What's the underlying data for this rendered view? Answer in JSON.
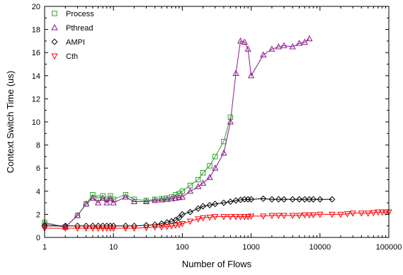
{
  "chart_data": {
    "type": "line",
    "title": "",
    "xlabel": "Number of Flows",
    "ylabel": "Context Switch Time (us)",
    "xscale": "log",
    "xlim": [
      1,
      100000
    ],
    "ylim": [
      0,
      20
    ],
    "x_ticks": [
      1,
      10,
      100,
      1000,
      10000,
      100000
    ],
    "x_tick_labels": [
      "1",
      "10",
      "100",
      "1000",
      "10000",
      "100000"
    ],
    "y_ticks": [
      0,
      2,
      4,
      6,
      8,
      10,
      12,
      14,
      16,
      18,
      20
    ],
    "y_tick_labels": [
      "0",
      "2",
      "4",
      "6",
      "8",
      "10",
      "12",
      "14",
      "16",
      "18",
      "20"
    ],
    "grid": false,
    "legend_position": "top-left",
    "series": [
      {
        "name": "Process",
        "color": "#2ca02c",
        "marker": "square",
        "points": [
          [
            1,
            1.3
          ],
          [
            2,
            0.9
          ],
          [
            3,
            1.9
          ],
          [
            4,
            2.9
          ],
          [
            5,
            3.7
          ],
          [
            6,
            3.4
          ],
          [
            7,
            3.6
          ],
          [
            8,
            3.3
          ],
          [
            9,
            3.6
          ],
          [
            10,
            3.3
          ],
          [
            15,
            3.7
          ],
          [
            20,
            3.3
          ],
          [
            30,
            3.2
          ],
          [
            40,
            3.3
          ],
          [
            50,
            3.35
          ],
          [
            60,
            3.4
          ],
          [
            70,
            3.5
          ],
          [
            80,
            3.7
          ],
          [
            90,
            3.8
          ],
          [
            100,
            4.0
          ],
          [
            130,
            4.5
          ],
          [
            170,
            5.0
          ],
          [
            200,
            5.6
          ],
          [
            250,
            6.2
          ],
          [
            300,
            7.0
          ],
          [
            400,
            8.3
          ],
          [
            500,
            10.4
          ]
        ]
      },
      {
        "name": "Pthread",
        "color": "#8b1a8b",
        "marker": "triangle-up",
        "points": [
          [
            1,
            1.2
          ],
          [
            2,
            0.9
          ],
          [
            3,
            1.9
          ],
          [
            4,
            2.9
          ],
          [
            5,
            3.4
          ],
          [
            6,
            3.0
          ],
          [
            7,
            3.4
          ],
          [
            8,
            3.0
          ],
          [
            9,
            3.4
          ],
          [
            10,
            3.0
          ],
          [
            15,
            3.5
          ],
          [
            20,
            3.1
          ],
          [
            30,
            3.1
          ],
          [
            40,
            3.2
          ],
          [
            50,
            3.25
          ],
          [
            60,
            3.3
          ],
          [
            70,
            3.35
          ],
          [
            80,
            3.4
          ],
          [
            90,
            3.45
          ],
          [
            100,
            3.5
          ],
          [
            130,
            4.0
          ],
          [
            170,
            4.4
          ],
          [
            200,
            4.7
          ],
          [
            250,
            5.2
          ],
          [
            300,
            6.0
          ],
          [
            400,
            7.3
          ],
          [
            500,
            10.0
          ],
          [
            600,
            14.2
          ],
          [
            700,
            17.0
          ],
          [
            800,
            16.9
          ],
          [
            900,
            16.3
          ],
          [
            1000,
            14.0
          ],
          [
            1500,
            15.8
          ],
          [
            2000,
            16.3
          ],
          [
            2500,
            16.5
          ],
          [
            3000,
            16.6
          ],
          [
            4000,
            16.5
          ],
          [
            5000,
            16.8
          ],
          [
            6000,
            16.9
          ],
          [
            7000,
            17.2
          ]
        ]
      },
      {
        "name": "AMPI",
        "color": "#000000",
        "marker": "diamond",
        "points": [
          [
            1,
            1.0
          ],
          [
            2,
            1.0
          ],
          [
            3,
            1.0
          ],
          [
            4,
            1.0
          ],
          [
            5,
            1.0
          ],
          [
            6,
            1.0
          ],
          [
            7,
            1.0
          ],
          [
            8,
            1.0
          ],
          [
            9,
            1.0
          ],
          [
            10,
            1.0
          ],
          [
            15,
            1.0
          ],
          [
            20,
            1.0
          ],
          [
            30,
            1.05
          ],
          [
            40,
            1.1
          ],
          [
            50,
            1.2
          ],
          [
            60,
            1.3
          ],
          [
            70,
            1.4
          ],
          [
            80,
            1.5
          ],
          [
            90,
            1.7
          ],
          [
            100,
            2.0
          ],
          [
            130,
            2.2
          ],
          [
            170,
            2.5
          ],
          [
            200,
            2.7
          ],
          [
            250,
            2.8
          ],
          [
            300,
            2.9
          ],
          [
            400,
            3.0
          ],
          [
            500,
            3.1
          ],
          [
            600,
            3.2
          ],
          [
            700,
            3.25
          ],
          [
            800,
            3.3
          ],
          [
            900,
            3.3
          ],
          [
            1000,
            3.3
          ],
          [
            1500,
            3.35
          ],
          [
            2000,
            3.3
          ],
          [
            2500,
            3.3
          ],
          [
            3000,
            3.3
          ],
          [
            4000,
            3.3
          ],
          [
            5000,
            3.3
          ],
          [
            6000,
            3.3
          ],
          [
            7000,
            3.3
          ],
          [
            8000,
            3.3
          ],
          [
            10000,
            3.3
          ],
          [
            15000,
            3.3
          ]
        ]
      },
      {
        "name": "Cth",
        "color": "#ff0000",
        "marker": "triangle-down",
        "points": [
          [
            1,
            0.8
          ],
          [
            2,
            0.8
          ],
          [
            3,
            0.8
          ],
          [
            4,
            0.8
          ],
          [
            5,
            0.8
          ],
          [
            6,
            0.8
          ],
          [
            7,
            0.8
          ],
          [
            8,
            0.8
          ],
          [
            9,
            0.8
          ],
          [
            10,
            0.8
          ],
          [
            15,
            0.8
          ],
          [
            20,
            0.8
          ],
          [
            30,
            0.85
          ],
          [
            40,
            0.9
          ],
          [
            50,
            0.9
          ],
          [
            60,
            0.95
          ],
          [
            70,
            1.0
          ],
          [
            80,
            1.05
          ],
          [
            90,
            1.1
          ],
          [
            100,
            1.2
          ],
          [
            130,
            1.4
          ],
          [
            170,
            1.6
          ],
          [
            200,
            1.7
          ],
          [
            250,
            1.75
          ],
          [
            300,
            1.8
          ],
          [
            400,
            1.8
          ],
          [
            500,
            1.8
          ],
          [
            600,
            1.8
          ],
          [
            700,
            1.8
          ],
          [
            800,
            1.8
          ],
          [
            900,
            1.8
          ],
          [
            1000,
            1.85
          ],
          [
            1500,
            1.85
          ],
          [
            2000,
            1.9
          ],
          [
            2500,
            1.9
          ],
          [
            3000,
            1.9
          ],
          [
            4000,
            1.9
          ],
          [
            5000,
            1.9
          ],
          [
            6000,
            1.95
          ],
          [
            7000,
            1.95
          ],
          [
            8000,
            1.95
          ],
          [
            10000,
            2.0
          ],
          [
            15000,
            2.0
          ],
          [
            20000,
            2.0
          ],
          [
            25000,
            2.05
          ],
          [
            30000,
            2.1
          ],
          [
            40000,
            2.1
          ],
          [
            50000,
            2.1
          ],
          [
            60000,
            2.15
          ],
          [
            70000,
            2.2
          ],
          [
            80000,
            2.2
          ],
          [
            90000,
            2.2
          ],
          [
            100000,
            2.2
          ]
        ]
      }
    ]
  }
}
